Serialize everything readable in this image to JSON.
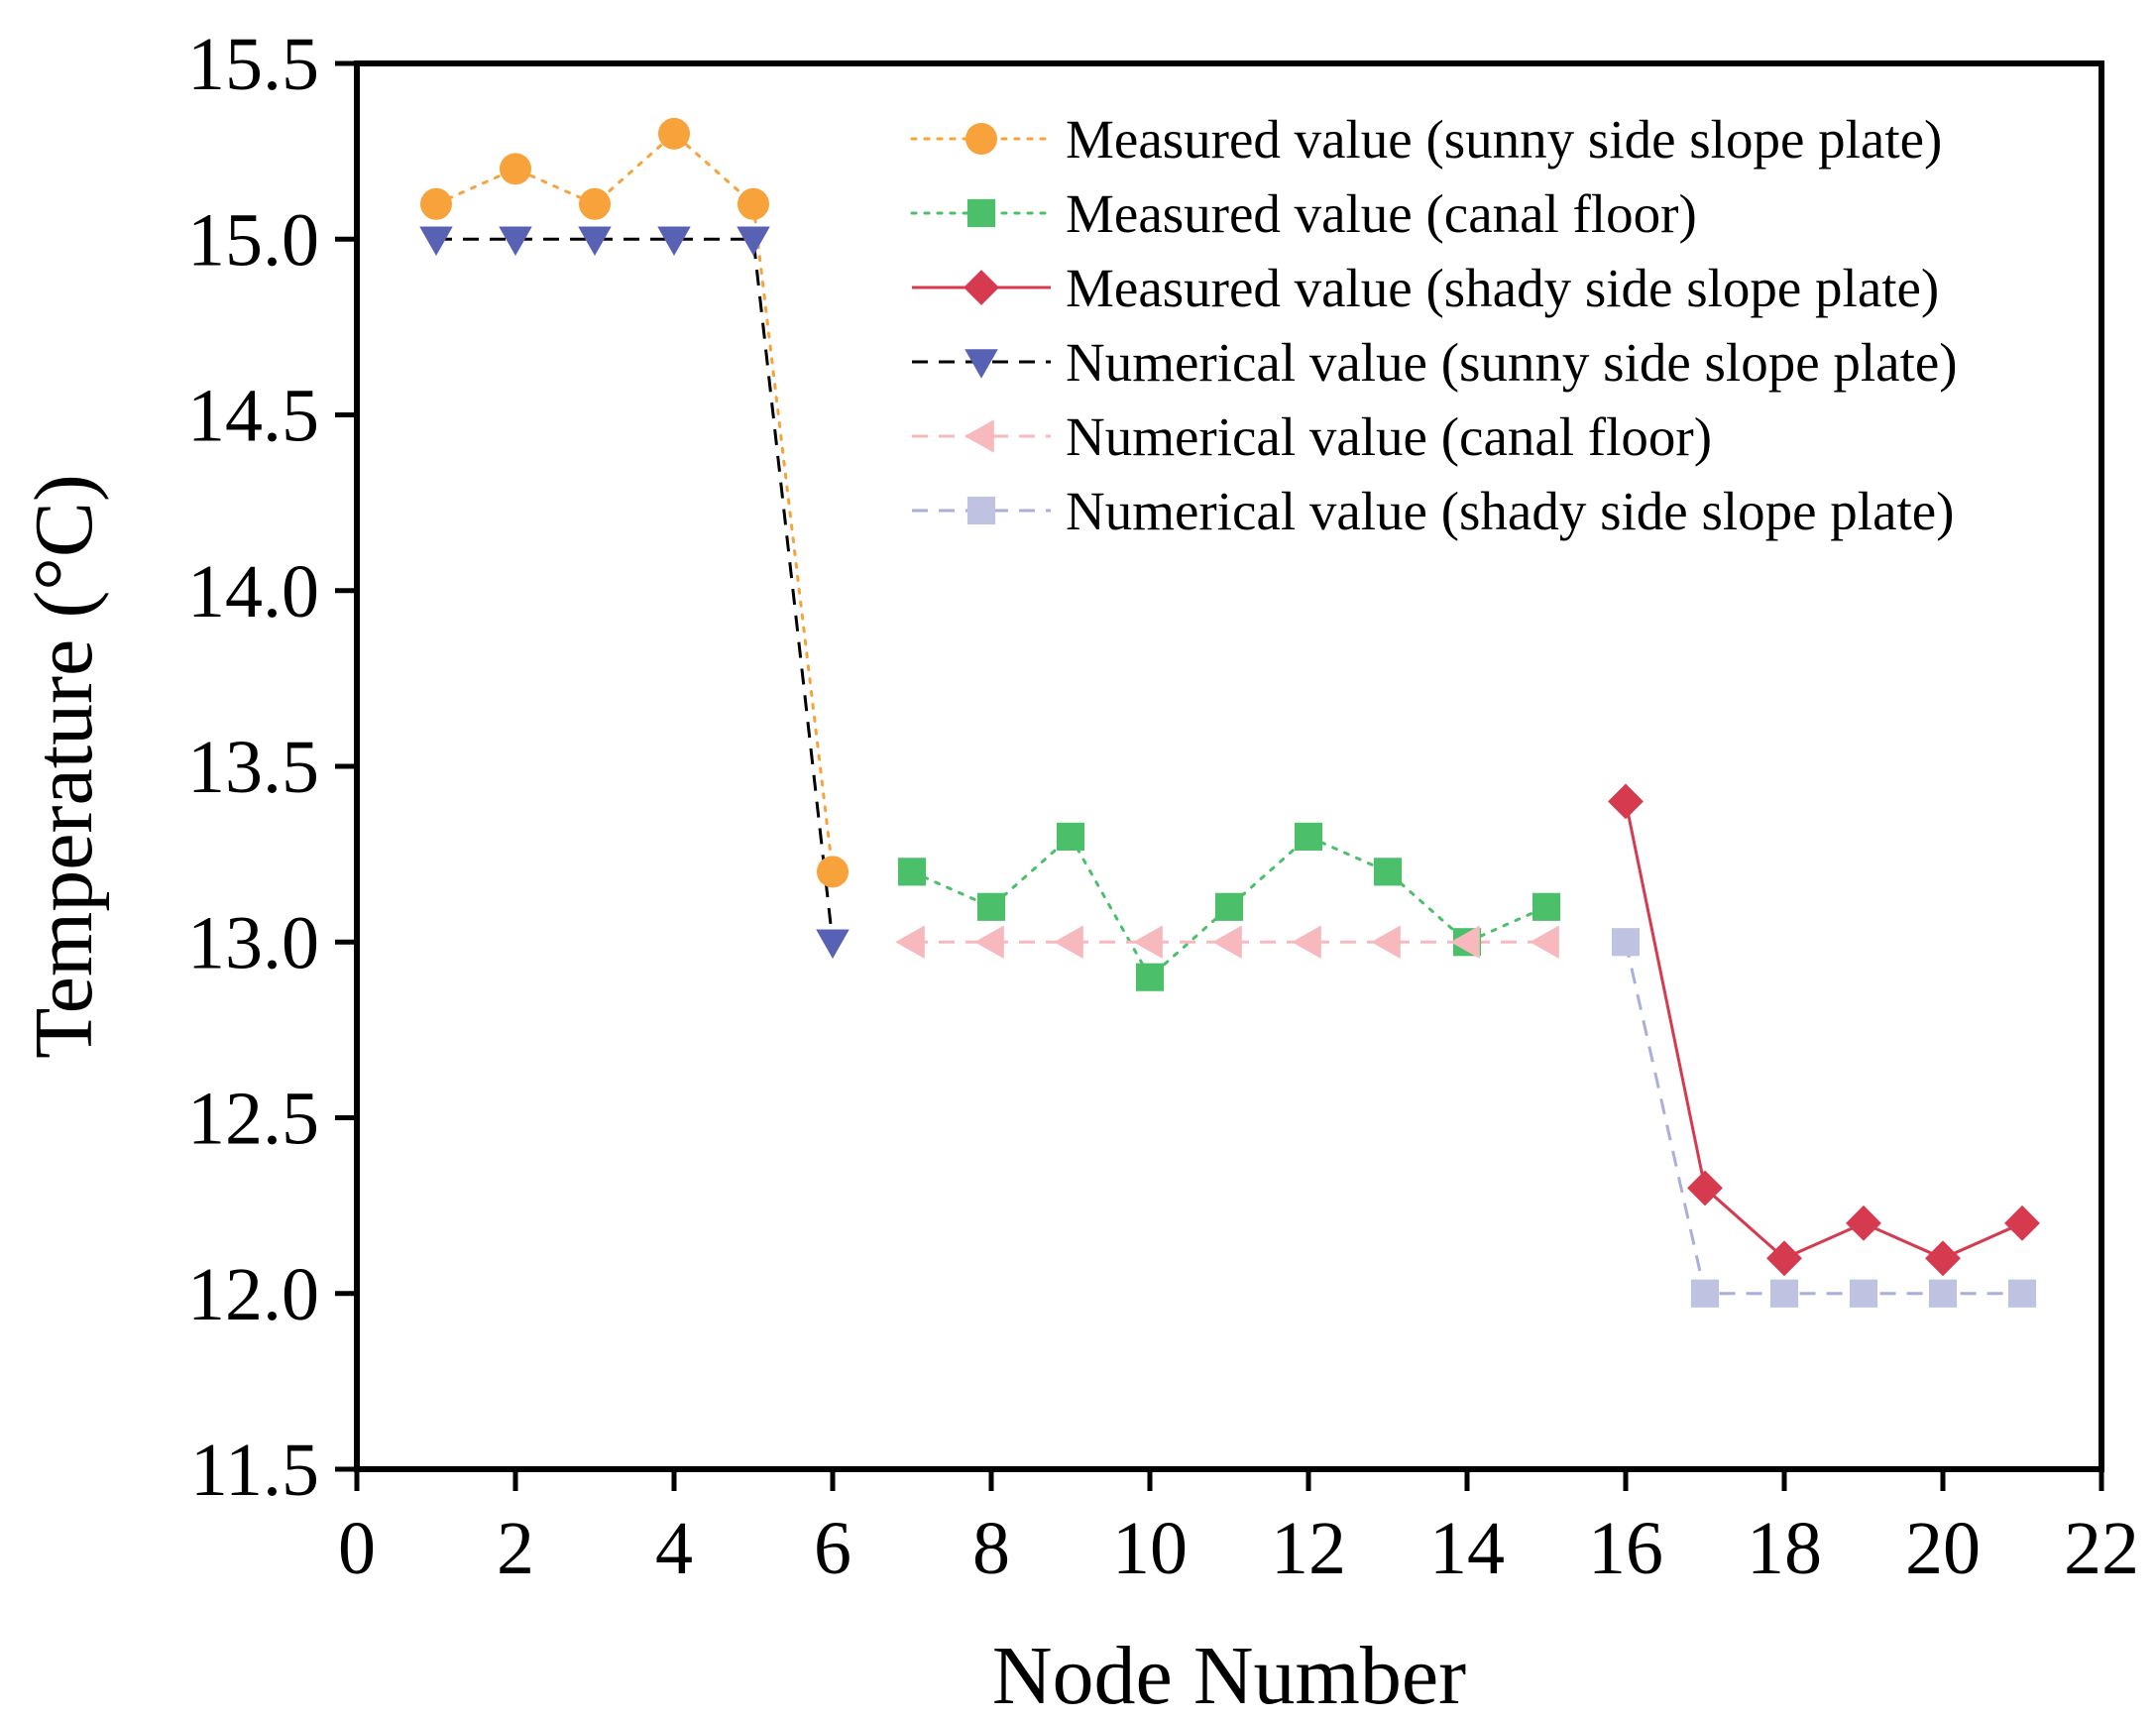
{
  "chart_data": {
    "type": "line",
    "title": "",
    "xlabel": "Node Number",
    "ylabel": "Temperature (°C)",
    "xlim": [
      0,
      22
    ],
    "ylim": [
      11.5,
      15.5
    ],
    "xticks": [
      0,
      2,
      4,
      6,
      8,
      10,
      12,
      14,
      16,
      18,
      20,
      22
    ],
    "xtick_labels": [
      "0",
      "2",
      "4",
      "6",
      "8",
      "10",
      "12",
      "14",
      "16",
      "18",
      "20",
      "22"
    ],
    "yticks": [
      11.5,
      12.0,
      12.5,
      13.0,
      13.5,
      14.0,
      14.5,
      15.0,
      15.5
    ],
    "ytick_labels": [
      "11.5",
      "12.0",
      "12.5",
      "13.0",
      "13.5",
      "14.0",
      "14.5",
      "15.0",
      "15.5"
    ],
    "grid": false,
    "legend_position": "top-right",
    "series": [
      {
        "name": "Measured value (sunny side slope plate)",
        "color": "#F7A23B",
        "line_style": "dotted",
        "marker": "circle",
        "marker_color": "#F7A23B",
        "x": [
          1,
          2,
          3,
          4,
          5,
          6
        ],
        "y": [
          15.1,
          15.2,
          15.1,
          15.3,
          15.1,
          13.2
        ]
      },
      {
        "name": "Measured value (canal floor)",
        "color": "#4CBF6A",
        "line_style": "dotted",
        "marker": "square",
        "marker_color": "#4CBF6A",
        "x": [
          7,
          8,
          9,
          10,
          11,
          12,
          13,
          14,
          15
        ],
        "y": [
          13.2,
          13.1,
          13.3,
          12.9,
          13.1,
          13.3,
          13.2,
          13.0,
          13.1
        ]
      },
      {
        "name": "Measured value (shady side slope plate)",
        "color": "#D63A4F",
        "line_style": "solid",
        "marker": "diamond",
        "marker_color": "#D63A4F",
        "x": [
          16,
          17,
          18,
          19,
          20,
          21
        ],
        "y": [
          13.4,
          12.3,
          12.1,
          12.2,
          12.1,
          12.2
        ]
      },
      {
        "name": "Numerical value (sunny side slope plate)",
        "color": "#000000",
        "line_style": "dashed",
        "marker": "triangle-down",
        "marker_color": "#5862B5",
        "x": [
          1,
          2,
          3,
          4,
          5,
          6
        ],
        "y": [
          15.0,
          15.0,
          15.0,
          15.0,
          15.0,
          13.0
        ]
      },
      {
        "name": "Numerical value (canal floor)",
        "color": "#F7B8BE",
        "line_style": "dashed",
        "marker": "triangle-left",
        "marker_color": "#F7B8BE",
        "x": [
          7,
          8,
          9,
          10,
          11,
          12,
          13,
          14,
          15
        ],
        "y": [
          13.0,
          13.0,
          13.0,
          13.0,
          13.0,
          13.0,
          13.0,
          13.0,
          13.0
        ]
      },
      {
        "name": "Numerical value (shady side slope plate)",
        "color": "#A9AEDB",
        "line_style": "dashed",
        "marker": "square",
        "marker_color": "#BFC2E0",
        "x": [
          16,
          17,
          18,
          19,
          20,
          21
        ],
        "y": [
          13.0,
          12.0,
          12.0,
          12.0,
          12.0,
          12.0
        ]
      }
    ]
  }
}
